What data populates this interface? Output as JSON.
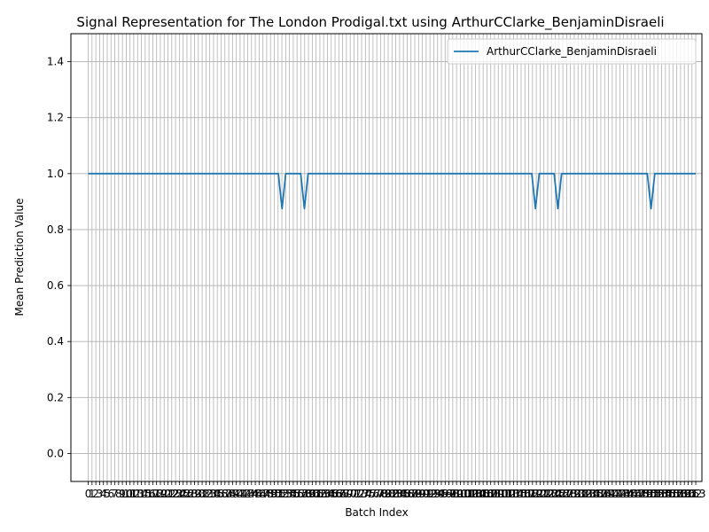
{
  "chart_data": {
    "type": "line",
    "title": "Signal Representation for The London Prodigal.txt using ArthurCClarke_BenjaminDisraeli",
    "xlabel": "Batch Index",
    "ylabel": "Mean Prediction Value",
    "xlim": [
      -4.65,
      164.65
    ],
    "ylim": [
      -0.1,
      1.5
    ],
    "yticks": [
      "0.0",
      "0.2",
      "0.4",
      "0.6",
      "0.8",
      "1.0",
      "1.2",
      "1.4"
    ],
    "ytick_values": [
      0.0,
      0.2,
      0.4,
      0.6,
      0.8,
      1.0,
      1.2,
      1.4
    ],
    "xtick_count": 161,
    "xtick_labels_first": [
      "0",
      "1",
      "2",
      "3",
      "4",
      "5",
      "6",
      "7",
      "8"
    ],
    "xtick_label_last": "163",
    "grid": true,
    "legend_position": "upper-right",
    "series": [
      {
        "name": "ArthurCClarke_BenjaminDisraeli",
        "color": "#1f77b4",
        "baseline": 1.0,
        "x_first": 0,
        "x_last": 163,
        "dips": [
          {
            "x": 52,
            "y": 0.875
          },
          {
            "x": 58,
            "y": 0.875
          },
          {
            "x": 120,
            "y": 0.875
          },
          {
            "x": 126,
            "y": 0.875
          },
          {
            "x": 151,
            "y": 0.875
          }
        ]
      }
    ]
  }
}
